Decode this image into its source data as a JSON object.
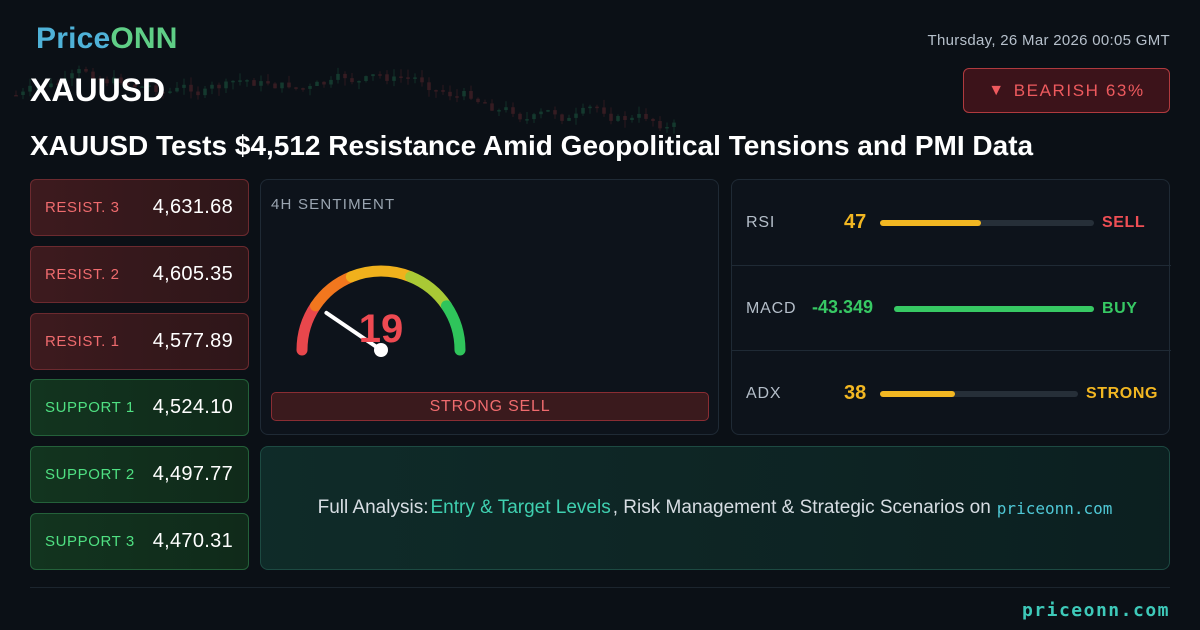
{
  "brand": {
    "part1": "Price",
    "part2": "ONN"
  },
  "header": {
    "symbol": "XAUUSD",
    "datetime": "Thursday, 26 Mar 2026 00:05 GMT",
    "bias_icon": "▼",
    "bias": "BEARISH 63%",
    "headline": "XAUUSD Tests $4,512 Resistance Amid Geopolitical Tensions and PMI Data"
  },
  "levels": {
    "resist3": {
      "label": "RESIST. 3",
      "value": "4,631.68"
    },
    "resist2": {
      "label": "RESIST. 2",
      "value": "4,605.35"
    },
    "resist1": {
      "label": "RESIST. 1",
      "value": "4,577.89"
    },
    "support1": {
      "label": "SUPPORT 1",
      "value": "4,524.10"
    },
    "support2": {
      "label": "SUPPORT 2",
      "value": "4,497.77"
    },
    "support3": {
      "label": "SUPPORT 3",
      "value": "4,470.31"
    }
  },
  "sentiment": {
    "title": "4H SENTIMENT",
    "score": 19,
    "score_text": "19",
    "label": "STRONG SELL"
  },
  "indicators": {
    "rsi": {
      "name": "RSI",
      "value": "47",
      "level": 0.47,
      "signal": "SELL",
      "color": "#f2b722",
      "signal_color": "#ef4f55"
    },
    "macd": {
      "name": "MACD",
      "value": "-43.349",
      "level": 1.0,
      "signal": "BUY",
      "color": "#37c964",
      "signal_color": "#37c964"
    },
    "adx": {
      "name": "ADX",
      "value": "38",
      "level": 0.38,
      "signal": "STRONG",
      "color": "#f2b722",
      "signal_color": "#f2b722"
    }
  },
  "analysis": {
    "prefix": "Full Analysis:",
    "highlight": "Entry & Target Levels",
    "rest": ", Risk Management & Strategic Scenarios on",
    "site": "priceonn.com"
  },
  "footer": {
    "site": "priceonn.com"
  },
  "colors": {
    "sell": "#ef4f55",
    "buy": "#37c964",
    "neutral": "#f2b722",
    "accent": "#3ec9b9"
  }
}
